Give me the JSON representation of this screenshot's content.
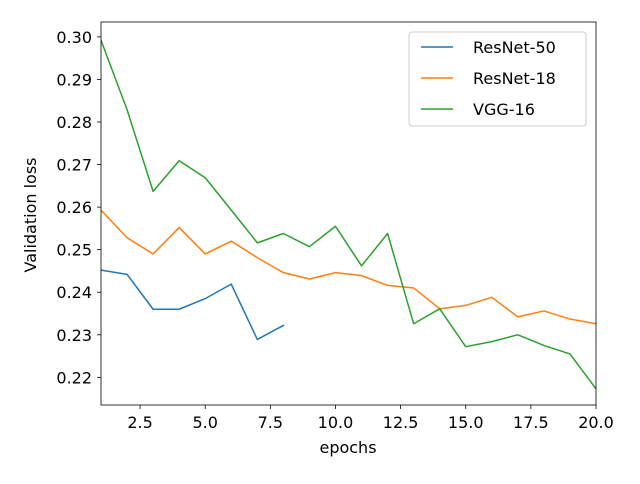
{
  "chart_data": {
    "type": "line",
    "xlabel": "epochs",
    "ylabel": "Validation loss",
    "xlim": [
      1,
      20
    ],
    "ylim": [
      0.2135,
      0.3035
    ],
    "xticks": [
      2.5,
      5.0,
      7.5,
      10.0,
      12.5,
      15.0,
      17.5,
      20.0
    ],
    "xtick_labels": [
      "2.5",
      "5.0",
      "7.5",
      "10.0",
      "12.5",
      "15.0",
      "17.5",
      "20.0"
    ],
    "yticks": [
      0.22,
      0.23,
      0.24,
      0.25,
      0.26,
      0.27,
      0.28,
      0.29,
      0.3
    ],
    "ytick_labels": [
      "0.22",
      "0.23",
      "0.24",
      "0.25",
      "0.26",
      "0.27",
      "0.28",
      "0.29",
      "0.30"
    ],
    "grid": false,
    "legend_position": "top-right",
    "series": [
      {
        "name": "ResNet-50",
        "color": "#1f77b4",
        "x": [
          1,
          2,
          3,
          4,
          5,
          6,
          7,
          8
        ],
        "y": [
          0.2452,
          0.2442,
          0.236,
          0.236,
          0.2385,
          0.2419,
          0.2289,
          0.2322
        ]
      },
      {
        "name": "ResNet-18",
        "color": "#ff7f0e",
        "x": [
          1,
          2,
          3,
          4,
          5,
          6,
          7,
          8,
          9,
          10,
          11,
          12,
          13,
          14,
          15,
          16,
          17,
          18,
          19,
          20
        ],
        "y": [
          0.2593,
          0.2528,
          0.249,
          0.2552,
          0.249,
          0.252,
          0.2481,
          0.2446,
          0.2431,
          0.2446,
          0.2439,
          0.2416,
          0.241,
          0.2361,
          0.2369,
          0.2388,
          0.2342,
          0.2356,
          0.2337,
          0.2326
        ]
      },
      {
        "name": "VGG-16",
        "color": "#2ca02c",
        "x": [
          1,
          2,
          3,
          4,
          5,
          6,
          7,
          8,
          9,
          10,
          11,
          12,
          13,
          14,
          15,
          16,
          17,
          18,
          19,
          20
        ],
        "y": [
          0.2992,
          0.2829,
          0.2637,
          0.2709,
          0.2669,
          0.2593,
          0.2516,
          0.2538,
          0.2507,
          0.2555,
          0.2462,
          0.2538,
          0.2326,
          0.2361,
          0.2272,
          0.2284,
          0.23,
          0.2275,
          0.2255,
          0.2173
        ]
      }
    ]
  }
}
